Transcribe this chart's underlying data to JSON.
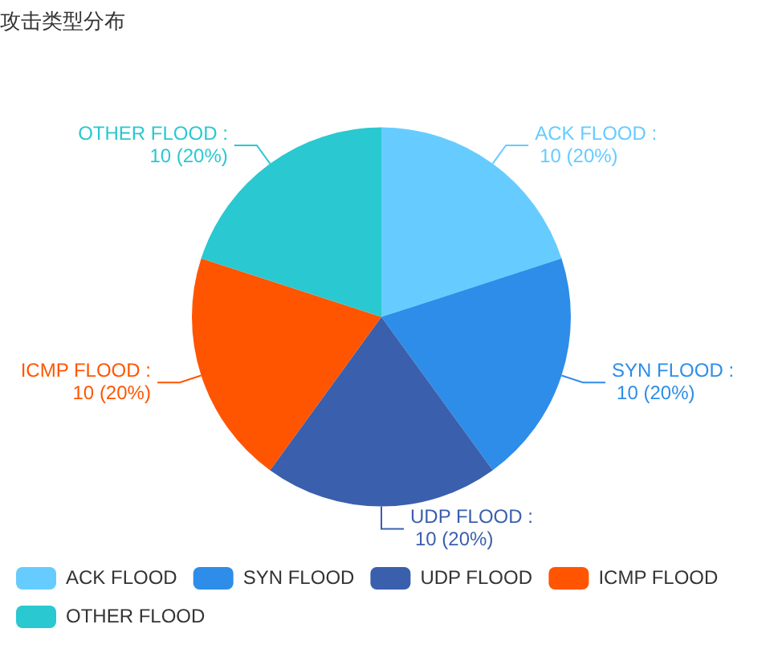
{
  "chart_data": {
    "type": "pie",
    "title": "攻击类型分布",
    "categories": [
      "ACK FLOOD",
      "SYN FLOOD",
      "UDP FLOOD",
      "ICMP FLOOD",
      "OTHER FLOOD"
    ],
    "values": [
      10,
      10,
      10,
      10,
      10
    ],
    "value_labels": [
      "ACK FLOOD :\n10 (20%)",
      "SYN FLOOD :\n10 (20%)",
      "UDP FLOOD :\n10 (20%)",
      "ICMP FLOOD :\n10 (20%)",
      "OTHER FLOOD :\n10 (20%)"
    ],
    "colors": [
      "#66ccff",
      "#2e8de8",
      "#3a5fad",
      "#ff5500",
      "#2ac8d0"
    ],
    "legend": "bottom left"
  }
}
